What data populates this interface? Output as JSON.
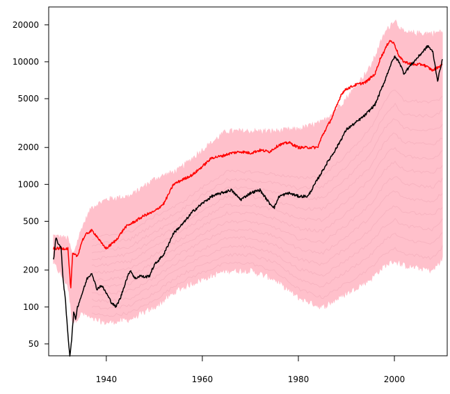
{
  "chart_data": {
    "type": "line",
    "title": "",
    "xlabel": "",
    "ylabel": "",
    "y_scale": "log",
    "xlim": [
      1928,
      2011
    ],
    "ylim": [
      40,
      28000
    ],
    "grid": false,
    "legend": "none",
    "x_ticks": [
      1940,
      1960,
      1980,
      2000
    ],
    "x_tick_labels": [
      "1940",
      "1960",
      "1980",
      "2000"
    ],
    "y_ticks": [
      50,
      100,
      200,
      500,
      1000,
      2000,
      5000,
      10000,
      20000
    ],
    "y_tick_labels": [
      "50",
      "100",
      "200",
      "500",
      "1000",
      "2000",
      "5000",
      "10000",
      "20000"
    ],
    "envelope": {
      "color": "#ffc0cb",
      "years": [
        1929,
        1932,
        1933,
        1935,
        1937,
        1940,
        1945,
        1950,
        1955,
        1960,
        1965,
        1970,
        1975,
        1980,
        1985,
        1990,
        1995,
        1998,
        2000,
        2002,
        2005,
        2008,
        2010
      ],
      "upper": [
        380,
        360,
        260,
        450,
        650,
        750,
        800,
        1100,
        1300,
        1900,
        2700,
        2700,
        2700,
        2800,
        3200,
        5000,
        9000,
        17000,
        22000,
        17000,
        17000,
        17000,
        17500
      ],
      "lower": [
        230,
        150,
        75,
        90,
        80,
        75,
        80,
        100,
        140,
        170,
        200,
        200,
        170,
        120,
        100,
        130,
        170,
        220,
        240,
        220,
        210,
        200,
        250
      ]
    },
    "series": [
      {
        "color": "#ff0000",
        "x": [
          1929,
          1931,
          1931.3,
          1932,
          1932.6,
          1933,
          1934,
          1935,
          1936,
          1937,
          1938,
          1939,
          1940,
          1942,
          1944,
          1946,
          1948,
          1950,
          1952,
          1954,
          1956,
          1958,
          1960,
          1962,
          1964,
          1966,
          1968,
          1970,
          1972,
          1974,
          1976,
          1978,
          1980,
          1982,
          1984,
          1985,
          1987,
          1989,
          1990,
          1992,
          1994,
          1996,
          1997,
          1998,
          1999,
          2000,
          2001,
          2002,
          2004,
          2006,
          2008,
          2009,
          2010
        ],
        "y": [
          300,
          300,
          300,
          300,
          140,
          270,
          260,
          350,
          400,
          420,
          380,
          330,
          300,
          350,
          450,
          500,
          560,
          600,
          700,
          1000,
          1100,
          1200,
          1400,
          1650,
          1700,
          1800,
          1850,
          1800,
          1900,
          1850,
          2100,
          2200,
          2000,
          2000,
          2000,
          2500,
          3500,
          5500,
          6000,
          6500,
          6800,
          8000,
          10500,
          12500,
          15000,
          14000,
          11000,
          10000,
          9500,
          9500,
          8500,
          9000,
          9500
        ]
      },
      {
        "color": "#000000",
        "x": [
          1929,
          1929.5,
          1930,
          1930.6,
          1931,
          1931.5,
          1932,
          1932.4,
          1932.8,
          1933.2,
          1933.6,
          1934,
          1935,
          1936,
          1937,
          1938,
          1939,
          1940,
          1941,
          1942,
          1943,
          1944,
          1945,
          1946,
          1947,
          1948,
          1949,
          1950,
          1952,
          1954,
          1956,
          1958,
          1960,
          1962,
          1964,
          1966,
          1968,
          1970,
          1972,
          1974,
          1975,
          1976,
          1978,
          1980,
          1982,
          1984,
          1986,
          1988,
          1990,
          1992,
          1994,
          1996,
          1998,
          1999,
          2000,
          2001,
          2002,
          2003,
          2005,
          2007,
          2008,
          2009,
          2010
        ],
        "y": [
          240,
          370,
          330,
          300,
          170,
          110,
          60,
          40,
          55,
          90,
          80,
          100,
          130,
          170,
          190,
          140,
          150,
          130,
          110,
          100,
          120,
          160,
          200,
          170,
          180,
          175,
          180,
          220,
          270,
          400,
          480,
          600,
          700,
          800,
          850,
          900,
          750,
          850,
          900,
          700,
          650,
          800,
          850,
          800,
          800,
          1100,
          1500,
          2000,
          2800,
          3200,
          3700,
          4500,
          7000,
          9000,
          11000,
          10000,
          8000,
          9000,
          11000,
          13500,
          12000,
          7000,
          10500
        ]
      }
    ]
  }
}
